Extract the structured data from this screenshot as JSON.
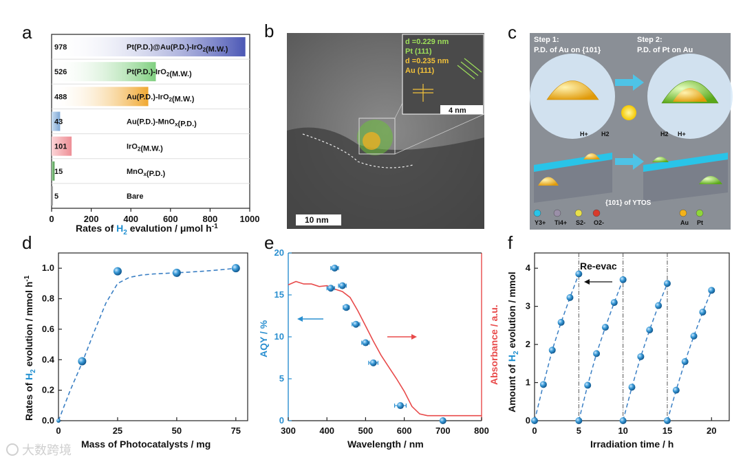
{
  "panels": {
    "a": "a",
    "b": "b",
    "c": "c",
    "d": "d",
    "e": "e",
    "f": "f"
  },
  "watermark": "大数跨境",
  "chart_data": [
    {
      "id": "a",
      "type": "bar",
      "orientation": "horizontal",
      "categories": [
        "Pt(P.D.)@Au(P.D.)-IrO2(M.W.)",
        "Pt(P.D.)-IrO2(M.W.)",
        "Au(P.D.)-IrO2(M.W.)",
        "Au(P.D.)-MnOx(P.D.)",
        "IrO2(M.W.)",
        "MnOx(P.D.)",
        "Bare"
      ],
      "values": [
        978,
        526,
        488,
        43,
        101,
        15,
        5
      ],
      "value_labels": [
        "978",
        "526",
        "488",
        "43",
        "101",
        "15",
        "5"
      ],
      "colors": [
        "#4b57b5",
        "#7fcf7f",
        "#f0a830",
        "#7fa8d6",
        "#ee8f96",
        "#4f9a4f",
        "#888888"
      ],
      "xlim": [
        0,
        1000
      ],
      "xticks": [
        "0",
        "200",
        "400",
        "600",
        "800",
        "1000"
      ],
      "xlabel_pre": "Rates  of  ",
      "xlabel_h2": "H",
      "xlabel_sub": "2",
      "xlabel_post": " evalution / μmol h",
      "xlabel_sup": "-1"
    },
    {
      "id": "b",
      "type": "image",
      "annotations": [
        "d =0.229 nm",
        "Pt (111)",
        "d =0.235 nm",
        "Au (111)"
      ],
      "inset_scale": "4 nm",
      "scale": "10 nm"
    },
    {
      "id": "c",
      "type": "schematic",
      "step1_title": "Step 1:",
      "step1_sub": "P.D. of Au on {101}",
      "step2_title": "Step 2:",
      "step2_sub": "P.D. of Pt on Au",
      "h_plus": "H+",
      "h2": "H2",
      "facet": "{101} of YTOS",
      "legend": [
        {
          "label": "Y3+",
          "color": "#29c4e8"
        },
        {
          "label": "Ti4+",
          "color": "#9a8fa8"
        },
        {
          "label": "S2-",
          "color": "#e8e04a"
        },
        {
          "label": "O2-",
          "color": "#d83a2a"
        },
        {
          "label": "Au",
          "color": "#f3b21a"
        },
        {
          "label": "Pt",
          "color": "#8fd63a"
        }
      ]
    },
    {
      "id": "d",
      "type": "scatter",
      "x": [
        0,
        10,
        25,
        50,
        75
      ],
      "y": [
        0,
        0.39,
        0.98,
        0.97,
        1.0
      ],
      "xlim": [
        0,
        80
      ],
      "ylim": [
        0,
        1.1
      ],
      "xticks": [
        "0",
        "25",
        "50",
        "75"
      ],
      "yticks": [
        "0.0",
        "0.2",
        "0.4",
        "0.6",
        "0.8",
        "1.0"
      ],
      "xlabel": "Mass of Photocatalysts / mg",
      "ylabel_pre": "Rates of ",
      "ylabel_h2": "H",
      "ylabel_sub": "2",
      "ylabel_post": " evolution / mmol h",
      "ylabel_sup": "-1",
      "fit_x": [
        0,
        5,
        10,
        15,
        20,
        25,
        30,
        35,
        40,
        45,
        50,
        55,
        60,
        65,
        70,
        75
      ],
      "fit_y": [
        0,
        0.2,
        0.38,
        0.58,
        0.77,
        0.9,
        0.94,
        0.955,
        0.962,
        0.966,
        0.97,
        0.974,
        0.979,
        0.985,
        0.992,
        1.0
      ]
    },
    {
      "id": "e",
      "type": "scatter+line",
      "x": [
        410,
        420,
        440,
        450,
        475,
        500,
        520,
        590,
        700
      ],
      "y": [
        15.8,
        18.2,
        16.1,
        13.5,
        11.5,
        9.3,
        6.9,
        1.8,
        0
      ],
      "xerr": [
        10,
        10,
        10,
        8,
        10,
        10,
        12,
        15,
        0
      ],
      "xlim": [
        300,
        800
      ],
      "ylim": [
        0,
        20
      ],
      "xticks": [
        "300",
        "400",
        "500",
        "600",
        "700",
        "800"
      ],
      "yticks": [
        "0",
        "5",
        "10",
        "15",
        "20"
      ],
      "xlabel": "Wavelength / nm",
      "ylabel": "AQY / %",
      "ylabel_right": "Absorbance / a.u.",
      "absorbance_x": [
        300,
        320,
        340,
        360,
        380,
        400,
        420,
        440,
        460,
        480,
        500,
        520,
        540,
        560,
        580,
        600,
        620,
        640,
        660,
        680,
        700,
        750,
        800
      ],
      "absorbance_y": [
        16.2,
        16.6,
        16.3,
        16.3,
        16.0,
        16.1,
        15.7,
        15.4,
        14.7,
        13.1,
        11.3,
        9.5,
        7.8,
        6.4,
        5.0,
        3.5,
        1.7,
        0.8,
        0.6,
        0.6,
        0.6,
        0.6,
        0.6
      ]
    },
    {
      "id": "f",
      "type": "scatter",
      "cycles": [
        {
          "x": [
            0,
            1,
            2,
            3,
            4,
            5
          ],
          "y": [
            0,
            0.95,
            1.85,
            2.58,
            3.23,
            3.85
          ]
        },
        {
          "x": [
            5,
            6,
            7,
            8,
            9,
            10
          ],
          "y": [
            0,
            0.93,
            1.76,
            2.45,
            3.1,
            3.7
          ]
        },
        {
          "x": [
            10,
            11,
            12,
            13,
            14,
            15
          ],
          "y": [
            0,
            0.88,
            1.68,
            2.38,
            3.02,
            3.6
          ]
        },
        {
          "x": [
            15,
            16,
            17,
            18,
            19,
            20
          ],
          "y": [
            0,
            0.8,
            1.55,
            2.22,
            2.85,
            3.42
          ]
        }
      ],
      "vlines": [
        5,
        10,
        15
      ],
      "xlim": [
        0,
        22
      ],
      "ylim": [
        0,
        4.4
      ],
      "xticks": [
        "0",
        "5",
        "10",
        "15",
        "20"
      ],
      "yticks": [
        "0",
        "1",
        "2",
        "3",
        "4"
      ],
      "xlabel": "Irradiation time / h",
      "ylabel_pre": "Amount of ",
      "ylabel_h2": "H",
      "ylabel_sub": "2",
      "ylabel_post": " evolution  / mmol",
      "annotation": "Re-evac"
    }
  ]
}
